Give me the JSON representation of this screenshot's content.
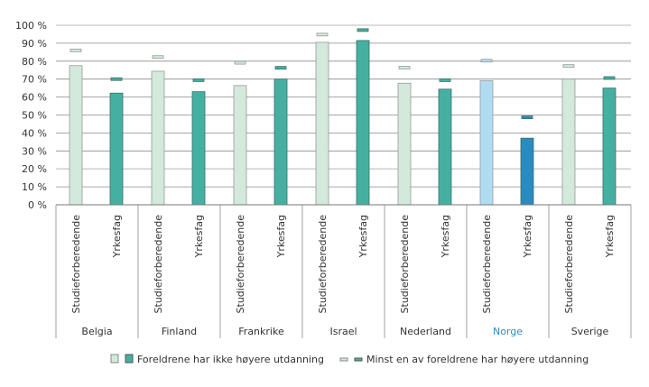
{
  "chart_data": {
    "type": "bar",
    "title": "",
    "xlabel": "",
    "ylabel": "",
    "ylim": [
      0,
      100
    ],
    "yticks": [
      "0 %",
      "10 %",
      "20 %",
      "30 %",
      "40 %",
      "50 %",
      "60 %",
      "70 %",
      "80 %",
      "90 %",
      "100 %"
    ],
    "subcategories": [
      "Studieforberedende",
      "Yrkesfag"
    ],
    "groups": [
      {
        "country": "Belgia",
        "highlight": false,
        "bars": [
          77.5,
          62.2
        ],
        "markers": [
          86,
          70
        ]
      },
      {
        "country": "Finland",
        "highlight": false,
        "bars": [
          74.4,
          63
        ],
        "markers": [
          82.3,
          69.4
        ]
      },
      {
        "country": "Frankrike",
        "highlight": false,
        "bars": [
          66.4,
          70
        ],
        "markers": [
          79.1,
          76.3
        ]
      },
      {
        "country": "Israel",
        "highlight": false,
        "bars": [
          90.5,
          91.5
        ],
        "markers": [
          94.8,
          97.3
        ]
      },
      {
        "country": "Nederland",
        "highlight": false,
        "bars": [
          67.7,
          64.4
        ],
        "markers": [
          76.4,
          69.4
        ]
      },
      {
        "country": "Norge",
        "highlight": true,
        "bars": [
          69.1,
          37.1
        ],
        "markers": [
          80.3,
          48.7
        ]
      },
      {
        "country": "Sverige",
        "highlight": false,
        "bars": [
          70,
          65
        ],
        "markers": [
          77.3,
          70.6
        ]
      }
    ],
    "legend": {
      "placement": "bottom",
      "entries": [
        {
          "label": "Foreldrene har ikke høyere utdanning",
          "kind": "bar"
        },
        {
          "label": "Minst en av foreldrene har høyere utdanning",
          "kind": "marker"
        }
      ]
    },
    "colors": {
      "studie": "#d2e9dc",
      "yrkes": "#45b0a2",
      "studie_highlight": "#aedcf0",
      "yrkes_highlight": "#2b8bbf",
      "highlight_label": "#2b8bbf",
      "grid": "#8a8a8a"
    }
  }
}
